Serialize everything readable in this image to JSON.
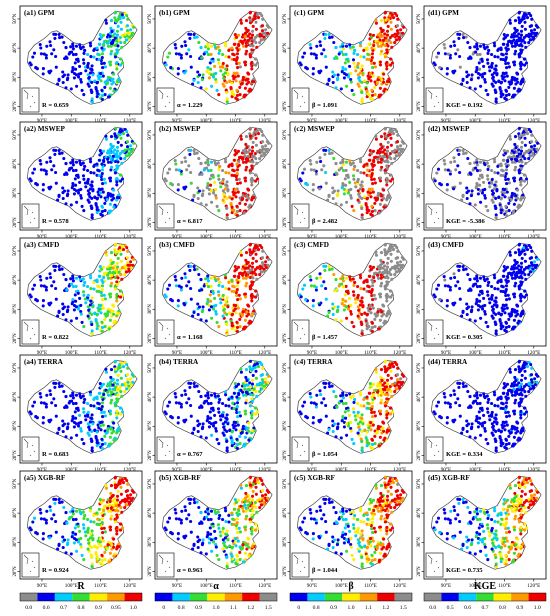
{
  "figure": {
    "rows": [
      "GPM",
      "MSWEP",
      "CMFD",
      "TERRA",
      "XGB-RF"
    ],
    "panels": [
      [
        {
          "label": "(a1) GPM",
          "stat": "R = 0.659",
          "metric": "R",
          "mean": 0.659
        },
        {
          "label": "(b1) GPM",
          "stat": "α = 1.229",
          "metric": "alpha",
          "mean": 1.229
        },
        {
          "label": "(c1) GPM",
          "stat": "β = 1.091",
          "metric": "beta",
          "mean": 1.091
        },
        {
          "label": "(d1) GPM",
          "stat": "KGE = 0.192",
          "metric": "KGE",
          "mean": 0.192
        }
      ],
      [
        {
          "label": "(a2) MSWEP",
          "stat": "R = 0.578",
          "metric": "R",
          "mean": 0.578
        },
        {
          "label": "(b2) MSWEP",
          "stat": "α = 6.817",
          "metric": "alpha",
          "mean": 6.817
        },
        {
          "label": "(c2) MSWEP",
          "stat": "β = 2.482",
          "metric": "beta",
          "mean": 2.482
        },
        {
          "label": "(d2) MSWEP",
          "stat": "KGE = -5.386",
          "metric": "KGE",
          "mean": -5.386
        }
      ],
      [
        {
          "label": "(a3) CMFD",
          "stat": "R = 0.822",
          "metric": "R",
          "mean": 0.822
        },
        {
          "label": "(b3) CMFD",
          "stat": "α = 1.168",
          "metric": "alpha",
          "mean": 1.168
        },
        {
          "label": "(c3) CMFD",
          "stat": "β = 1.457",
          "metric": "beta",
          "mean": 1.457
        },
        {
          "label": "(d3) CMFD",
          "stat": "KGE = 0.305",
          "metric": "KGE",
          "mean": 0.305
        }
      ],
      [
        {
          "label": "(a4) TERRA",
          "stat": "R = 0.683",
          "metric": "R",
          "mean": 0.683
        },
        {
          "label": "(b4) TERRA",
          "stat": "α = 0.767",
          "metric": "alpha",
          "mean": 0.767
        },
        {
          "label": "(c4) TERRA",
          "stat": "β = 1.054",
          "metric": "beta",
          "mean": 1.054
        },
        {
          "label": "(d4) TERRA",
          "stat": "KGE = 0.334",
          "metric": "KGE",
          "mean": 0.334
        }
      ],
      [
        {
          "label": "(a5) XGB-RF",
          "stat": "R = 0.924",
          "metric": "R",
          "mean": 0.924
        },
        {
          "label": "(b5) XGB-RF",
          "stat": "α = 0.963",
          "metric": "alpha",
          "mean": 0.963
        },
        {
          "label": "(c5) XGB-RF",
          "stat": "β = 1.044",
          "metric": "beta",
          "mean": 1.044
        },
        {
          "label": "(d5) XGB-RF",
          "stat": "KGE = 0.735",
          "metric": "KGE",
          "mean": 0.735
        }
      ]
    ],
    "axes": {
      "lat_labels": [
        "50°N",
        "40°N",
        "30°N",
        "20°N"
      ],
      "lon_labels": [
        "90°E",
        "100°E",
        "110°E",
        "120°E"
      ]
    },
    "colorbars": [
      {
        "title": "R",
        "metric": "R",
        "ticks": [
          "0.0",
          "0.6",
          "0.7",
          "0.8",
          "0.9",
          "0.95",
          "1.0"
        ],
        "colors": [
          "#8c8c8c",
          "#0000ee",
          "#00ccff",
          "#33dd33",
          "#ffee00",
          "#ff9900",
          "#ee0000"
        ]
      },
      {
        "title": "α",
        "metric": "alpha",
        "ticks": [
          "0",
          "0.8",
          "0.9",
          "1.0",
          "1.1",
          "1.2",
          "1.5"
        ],
        "colors": [
          "#0000ee",
          "#00ccff",
          "#33dd33",
          "#ffee00",
          "#ff9900",
          "#ee0000",
          "#8c8c8c"
        ]
      },
      {
        "title": "β",
        "metric": "beta",
        "ticks": [
          "0",
          "0.8",
          "0.9",
          "1.0",
          "1.1",
          "1.2",
          "1.5"
        ],
        "colors": [
          "#0000ee",
          "#00ccff",
          "#33dd33",
          "#ffee00",
          "#ff9900",
          "#ee0000",
          "#8c8c8c"
        ]
      },
      {
        "title": "KGE",
        "metric": "KGE",
        "ticks": [
          "0.0",
          "0.5",
          "0.6",
          "0.7",
          "0.8",
          "0.9",
          "1.0"
        ],
        "colors": [
          "#8c8c8c",
          "#0000ee",
          "#00ccff",
          "#33dd33",
          "#ffee00",
          "#ff9900",
          "#ee0000"
        ]
      }
    ]
  }
}
